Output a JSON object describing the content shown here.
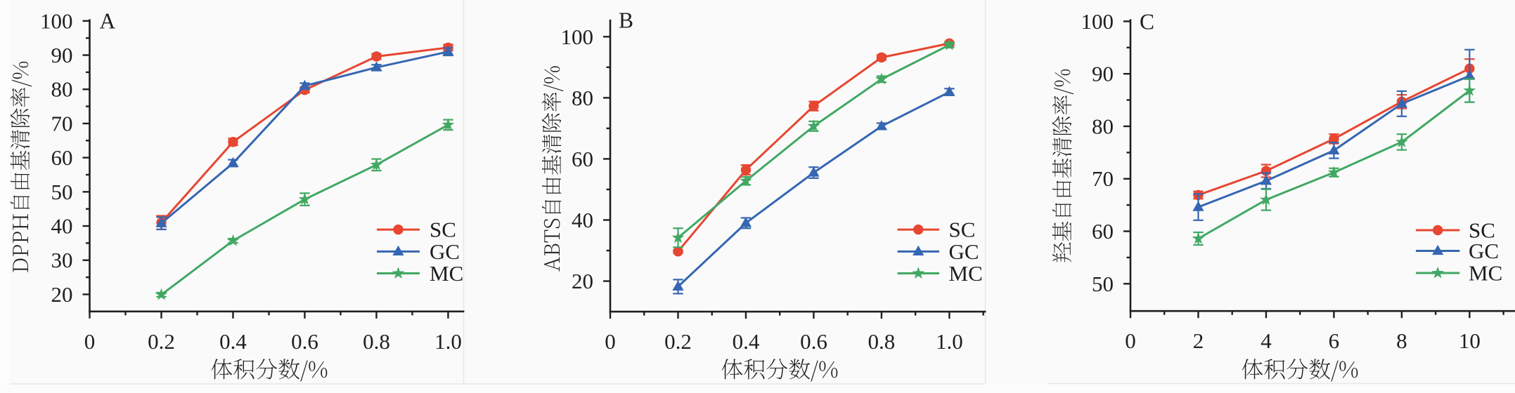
{
  "figure": {
    "description": "Three-panel line chart figure of free radical scavenging rates",
    "background": "#fafafa",
    "panel_letters": [
      "A",
      "B",
      "C"
    ]
  },
  "colors": {
    "axis": "#1f1f1f",
    "text": "#1f1f1f",
    "sc": "#e74631",
    "gc": "#3566b2",
    "mc": "#41a863",
    "background": "#fafafa",
    "edge_artifact": "#e7e7ea"
  },
  "chart_data": [
    {
      "type": "line",
      "panel_label": "A",
      "xlabel": "体积分数/%",
      "ylabel": "DPPH自由基清除率/%",
      "xlim": [
        0,
        1.045
      ],
      "ylim": [
        15,
        100.5
      ],
      "xticks": [
        0,
        0.2,
        0.4,
        0.6,
        0.8,
        1.0
      ],
      "xtick_labels": [
        "0",
        "0.2",
        "0.4",
        "0.6",
        "0.8",
        "1.0"
      ],
      "xminors": [
        0.1,
        0.3,
        0.5,
        0.7,
        0.9
      ],
      "yticks": [
        20,
        30,
        40,
        50,
        60,
        70,
        80,
        90,
        100
      ],
      "ytick_labels": [
        "20",
        "30",
        "40",
        "50",
        "60",
        "70",
        "80",
        "90",
        "100"
      ],
      "yminors": [
        25,
        35,
        45,
        55,
        65,
        75,
        85,
        95
      ],
      "x": [
        0.2,
        0.4,
        0.6,
        0.8,
        1.0
      ],
      "legend_position": "inside right",
      "grid": false,
      "series": [
        {
          "name": "SC",
          "color": "#e74631",
          "marker": "circle",
          "values": [
            41.0,
            64.6,
            79.8,
            89.6,
            92.2
          ],
          "errors": [
            2.0,
            1.0,
            0.8,
            0.8,
            0.9
          ]
        },
        {
          "name": "GC",
          "color": "#3566b2",
          "marker": "triangle",
          "values": [
            40.8,
            58.4,
            81.0,
            86.4,
            91.0
          ],
          "errors": [
            1.8,
            1.0,
            0.8,
            0.8,
            1.1
          ]
        },
        {
          "name": "MC",
          "color": "#41a863",
          "marker": "star",
          "values": [
            19.9,
            35.7,
            47.8,
            57.9,
            69.6
          ],
          "errors": [
            0.6,
            0.6,
            1.8,
            1.7,
            1.5
          ]
        }
      ]
    },
    {
      "type": "line",
      "panel_label": "B",
      "xlabel": "体积分数/%",
      "ylabel": "ABTS自由基清除率/%",
      "xlim": [
        0,
        1.108
      ],
      "ylim": [
        10,
        105.6
      ],
      "xticks": [
        0,
        0.2,
        0.4,
        0.6,
        0.8,
        1.0
      ],
      "xtick_labels": [
        "0",
        "0.2",
        "0.4",
        "0.6",
        "0.8",
        "1.0"
      ],
      "xminors": [
        0.1,
        0.3,
        0.5,
        0.7,
        0.9,
        1.1
      ],
      "yticks": [
        20,
        40,
        60,
        80,
        100
      ],
      "ytick_labels": [
        "20",
        "40",
        "60",
        "80",
        "100"
      ],
      "yminors": [
        30,
        50,
        70,
        90
      ],
      "x": [
        0.2,
        0.4,
        0.6,
        0.8,
        1.0
      ],
      "legend_position": "inside right",
      "grid": false,
      "series": [
        {
          "name": "SC",
          "color": "#e74631",
          "marker": "circle",
          "values": [
            29.7,
            56.4,
            77.3,
            93.2,
            97.8
          ],
          "errors": [
            0.5,
            1.6,
            1.5,
            0.8,
            0.6
          ]
        },
        {
          "name": "GC",
          "color": "#3566b2",
          "marker": "triangle",
          "values": [
            18.2,
            39.0,
            55.5,
            70.7,
            81.9
          ],
          "errors": [
            2.3,
            1.7,
            1.8,
            1.0,
            1.1
          ]
        },
        {
          "name": "MC",
          "color": "#41a863",
          "marker": "star",
          "values": [
            34.2,
            52.8,
            70.7,
            86.1,
            97.3
          ],
          "errors": [
            3.1,
            1.3,
            1.6,
            1.0,
            0.8
          ]
        }
      ]
    },
    {
      "type": "line",
      "panel_label": "C",
      "xlabel": "体积分数/%",
      "ylabel": "羟基自由基清除率/%",
      "xlim": [
        0,
        11.34
      ],
      "ylim": [
        44.8,
        100.4
      ],
      "xticks": [
        0,
        2,
        4,
        6,
        8,
        10
      ],
      "xtick_labels": [
        "0",
        "2",
        "4",
        "6",
        "8",
        "10"
      ],
      "xminors": [
        1,
        3,
        5,
        7,
        9,
        11
      ],
      "yticks": [
        50,
        60,
        70,
        80,
        90,
        100
      ],
      "ytick_labels": [
        "50",
        "60",
        "70",
        "80",
        "90",
        "100"
      ],
      "yminors": [
        55,
        65,
        75,
        85,
        95
      ],
      "x": [
        2,
        4,
        6,
        8,
        10
      ],
      "legend_position": "inside right",
      "grid": false,
      "series": [
        {
          "name": "SC",
          "color": "#e74631",
          "marker": "circle",
          "values": [
            66.9,
            71.5,
            77.6,
            84.7,
            91.0
          ],
          "errors": [
            0.7,
            1.2,
            0.9,
            1.3,
            1.8
          ]
        },
        {
          "name": "GC",
          "color": "#3566b2",
          "marker": "triangle",
          "values": [
            64.6,
            69.6,
            75.4,
            84.3,
            89.6
          ],
          "errors": [
            2.5,
            1.5,
            1.5,
            2.4,
            5.0
          ]
        },
        {
          "name": "MC",
          "color": "#41a863",
          "marker": "star",
          "values": [
            58.6,
            66.0,
            71.2,
            77.0,
            86.8
          ],
          "errors": [
            1.2,
            2.0,
            0.8,
            1.5,
            2.2
          ]
        }
      ]
    }
  ]
}
